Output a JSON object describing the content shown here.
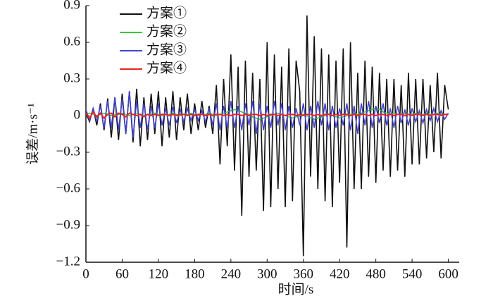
{
  "chart_data": {
    "type": "line",
    "x_label": "时间/s",
    "y_label": "误差/m·s⁻¹",
    "x": [
      0,
      6,
      12,
      18,
      24,
      30,
      36,
      42,
      48,
      54,
      60,
      66,
      72,
      78,
      84,
      90,
      96,
      102,
      108,
      114,
      120,
      126,
      132,
      138,
      144,
      150,
      156,
      162,
      168,
      174,
      180,
      186,
      192,
      198,
      204,
      210,
      216,
      222,
      228,
      234,
      240,
      246,
      252,
      258,
      264,
      270,
      276,
      282,
      288,
      294,
      300,
      306,
      312,
      318,
      324,
      330,
      336,
      342,
      348,
      354,
      360,
      366,
      372,
      378,
      384,
      390,
      396,
      402,
      408,
      414,
      420,
      426,
      432,
      438,
      444,
      450,
      456,
      462,
      468,
      474,
      480,
      486,
      492,
      498,
      504,
      510,
      516,
      522,
      528,
      534,
      540,
      546,
      552,
      558,
      564,
      570,
      576,
      582,
      588,
      594,
      600
    ],
    "series": [
      {
        "name": "方案①",
        "color": "#111111",
        "values": [
          0.02,
          -0.05,
          0.06,
          -0.08,
          0.1,
          -0.12,
          0.14,
          -0.18,
          0.15,
          -0.2,
          0.18,
          -0.15,
          0.2,
          -0.22,
          0.22,
          -0.25,
          0.15,
          -0.2,
          0.18,
          -0.15,
          0.2,
          -0.25,
          0.15,
          -0.18,
          0.2,
          -0.2,
          0.15,
          -0.12,
          0.18,
          -0.15,
          0.1,
          -0.12,
          0.12,
          -0.1,
          0.08,
          -0.15,
          0.25,
          -0.4,
          0.3,
          -0.25,
          0.5,
          -0.45,
          0.4,
          -0.82,
          0.45,
          -0.5,
          0.35,
          -0.45,
          0.3,
          -0.78,
          0.6,
          -0.75,
          0.5,
          -0.6,
          0.4,
          -0.75,
          0.55,
          -0.7,
          0.45,
          0.2,
          -1.15,
          0.82,
          -0.5,
          0.65,
          -0.6,
          0.55,
          -0.7,
          0.5,
          -0.75,
          0.45,
          -0.55,
          0.55,
          -1.08,
          0.6,
          -0.6,
          0.35,
          -0.6,
          0.45,
          -0.5,
          0.4,
          -0.55,
          0.35,
          -0.45,
          0.3,
          -0.5,
          0.3,
          -0.45,
          0.25,
          -0.5,
          0.35,
          -0.4,
          0.3,
          -0.4,
          0.3,
          -0.35,
          0.25,
          -0.3,
          0.35,
          -0.35,
          0.25,
          0.05
        ]
      },
      {
        "name": "方案②",
        "color": "#33cc33",
        "values": [
          0.01,
          0.02,
          0.01,
          0,
          0.01,
          0.02,
          0.01,
          0,
          0.01,
          0.01,
          0.02,
          0.01,
          0,
          0.01,
          0.02,
          0.01,
          0,
          0.01,
          0.01,
          0.02,
          0.01,
          0,
          0.01,
          0.01,
          0.02,
          0.01,
          0,
          0.01,
          0.01,
          0.02,
          0.01,
          0,
          0.01,
          0.01,
          0.02,
          0.01,
          0,
          0.01,
          0.02,
          0.03,
          0.04,
          0.05,
          0.04,
          0.03,
          0.02,
          0.01,
          -0.01,
          -0.02,
          -0.03,
          -0.02,
          -0.01,
          0,
          0.01,
          0.02,
          0.01,
          0,
          -0.01,
          -0.02,
          -0.01,
          0,
          0.01,
          0,
          -0.02,
          -0.03,
          -0.02,
          -0.01,
          0,
          0.01,
          0,
          -0.01,
          -0.02,
          -0.01,
          0,
          0.01,
          0.02,
          0.01,
          0.02,
          0.03,
          0.04,
          0.05,
          0.06,
          0.05,
          0.03,
          0.02,
          0.01,
          0.02,
          0.01,
          0.01,
          0.02,
          0.01,
          0.01,
          0.02,
          0.01,
          0.01,
          0.02,
          0.01,
          0.01,
          0.02,
          0.01,
          0.01,
          0.01
        ]
      },
      {
        "name": "方案③",
        "color": "#4444cc",
        "values": [
          0.05,
          -0.04,
          0.06,
          -0.05,
          0.08,
          -0.1,
          0.12,
          -0.1,
          0.15,
          -0.12,
          0.14,
          -0.15,
          0.2,
          -0.18,
          0.12,
          -0.1,
          0.1,
          -0.12,
          0.08,
          -0.1,
          0.1,
          -0.08,
          0.06,
          -0.08,
          0.07,
          -0.06,
          0.05,
          -0.05,
          0.06,
          -0.04,
          0.05,
          -0.04,
          0.04,
          -0.05,
          0.06,
          -0.08,
          0.1,
          -0.12,
          0.08,
          -0.1,
          0.12,
          -0.1,
          0.08,
          -0.12,
          0.1,
          -0.08,
          0.12,
          -0.15,
          0.1,
          -0.12,
          0.08,
          -0.1,
          0.12,
          -0.08,
          0.1,
          -0.12,
          0.08,
          -0.1,
          0.06,
          -0.08,
          0.1,
          -0.12,
          0.08,
          -0.1,
          0.12,
          -0.08,
          0.1,
          -0.12,
          0.08,
          -0.1,
          0.06,
          -0.08,
          0.1,
          -0.12,
          0.08,
          -0.15,
          0.1,
          -0.08,
          0.12,
          -0.1,
          0.08,
          -0.06,
          0.1,
          -0.08,
          0.06,
          -0.1,
          0.08,
          -0.06,
          0.05,
          -0.08,
          0.06,
          -0.05,
          0.04,
          -0.06,
          0.05,
          -0.04,
          0.06,
          -0.05,
          0.04,
          -0.03,
          0.02
        ]
      },
      {
        "name": "方案④",
        "color": "#ee2222",
        "values": [
          0.02,
          -0.02,
          0.03,
          -0.01,
          0.02,
          -0.02,
          0.01,
          0.02,
          -0.01,
          0.02,
          0.01,
          -0.01,
          0.02,
          0.01,
          0,
          0.01,
          -0.01,
          0.01,
          0,
          0.01,
          0,
          0.01,
          0.01,
          0,
          0.01,
          0,
          0.01,
          0.01,
          0,
          0.01,
          0,
          0.01,
          0.01,
          0,
          0.01,
          0,
          0.01,
          0.01,
          0,
          0.01,
          0,
          0.01,
          0.01,
          0,
          0.01,
          0,
          0.01,
          0.01,
          0,
          0.01,
          0,
          0.01,
          0.01,
          0,
          0.01,
          0,
          0.01,
          0.01,
          0,
          0.01,
          0,
          0.01,
          0.01,
          0,
          0.01,
          0,
          0.01,
          0.01,
          0,
          0.01,
          0,
          0.01,
          0.01,
          0,
          0.01,
          0,
          0.01,
          0.01,
          0,
          0.01,
          0,
          0.01,
          0.01,
          0,
          0.01,
          0,
          0.01,
          0.01,
          0,
          0.01,
          0,
          0.01,
          0.01,
          0,
          0.01,
          0,
          0.01,
          0.01,
          0,
          0.01,
          0.01
        ]
      }
    ],
    "xlim": [
      0,
      618
    ],
    "ylim": [
      -1.2,
      0.9
    ],
    "xticks": [
      0,
      60,
      120,
      180,
      240,
      300,
      360,
      420,
      480,
      540,
      600
    ],
    "yticks": [
      {
        "value": -1.2,
        "label": "−1.2"
      },
      {
        "value": -0.9,
        "label": "−0.9"
      },
      {
        "value": -0.6,
        "label": "−0.6"
      },
      {
        "value": -0.3,
        "label": "−0.3"
      },
      0,
      0.3,
      0.6,
      0.9
    ],
    "legend": "upper-left"
  }
}
